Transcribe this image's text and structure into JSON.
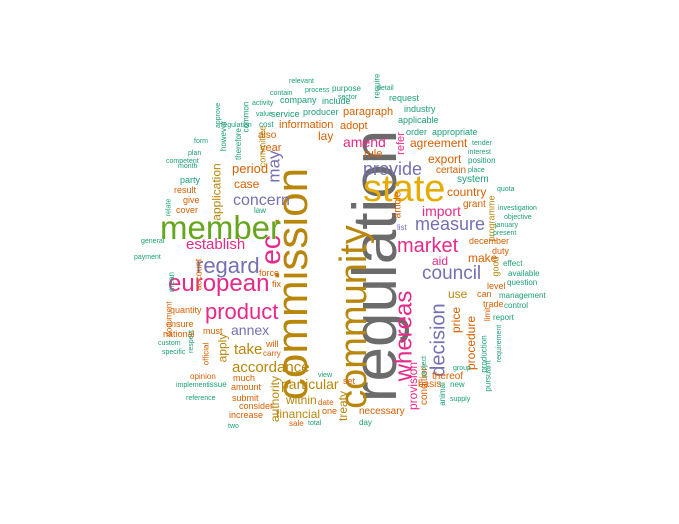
{
  "palette": {
    "grey": "#6b6b6b",
    "gold": "#b8860b",
    "yellow": "#e6ab02",
    "green": "#66a61e",
    "pink": "#e7298a",
    "purple": "#7570b3",
    "orange": "#d95f02",
    "teal": "#1b9e77"
  },
  "words": [
    "regulation",
    "commission",
    "community",
    "state",
    "member",
    "european",
    "whereas",
    "ec",
    "regard",
    "product",
    "market",
    "decision",
    "council",
    "measure",
    "provide",
    "may",
    "establish",
    "concern",
    "accordance",
    "annex",
    "particular",
    "take",
    "import",
    "amend",
    "period",
    "case",
    "application",
    "apply",
    "within",
    "financial",
    "authority",
    "treaty",
    "provision",
    "procedure",
    "country",
    "export",
    "agreement",
    "information",
    "paragraph",
    "lay",
    "use",
    "aid",
    "make",
    "price",
    "condition",
    "basis",
    "thereof",
    "year",
    "also",
    "article",
    "adopt",
    "rule",
    "necessary",
    "certain",
    "system",
    "grant",
    "programme",
    "december",
    "duty",
    "level",
    "good",
    "trade",
    "can",
    "limit",
    "new",
    "production",
    "pursuant",
    "animal",
    "list",
    "refer",
    "order",
    "appropriate",
    "industry",
    "applicable",
    "request",
    "include",
    "producer",
    "purpose",
    "process",
    "service",
    "company",
    "cost",
    "committee",
    "common",
    "therefore",
    "however",
    "party",
    "give",
    "result",
    "cover",
    "account",
    "mean",
    "quantity",
    "ensure",
    "national",
    "document",
    "official",
    "must",
    "much",
    "amount",
    "submit",
    "increase",
    "consider",
    "opinion",
    "custom",
    "specific",
    "respect",
    "will",
    "carry",
    "force",
    "fix",
    "sale",
    "date",
    "one",
    "set",
    "view",
    "total",
    "day",
    "issue",
    "effect",
    "available",
    "question",
    "management",
    "control",
    "report",
    "requirement",
    "investigation",
    "quota",
    "objective",
    "january",
    "present",
    "tender",
    "interest",
    "position",
    "place",
    "general",
    "payment",
    "implement",
    "reference",
    "supply",
    "group",
    "project",
    "detail",
    "relevant",
    "sector",
    "require",
    "plan",
    "month",
    "competent",
    "form",
    "approve",
    "activity",
    "value",
    "contain",
    "number",
    "regulation",
    "relate",
    "law",
    "two",
    "operation"
  ]
}
